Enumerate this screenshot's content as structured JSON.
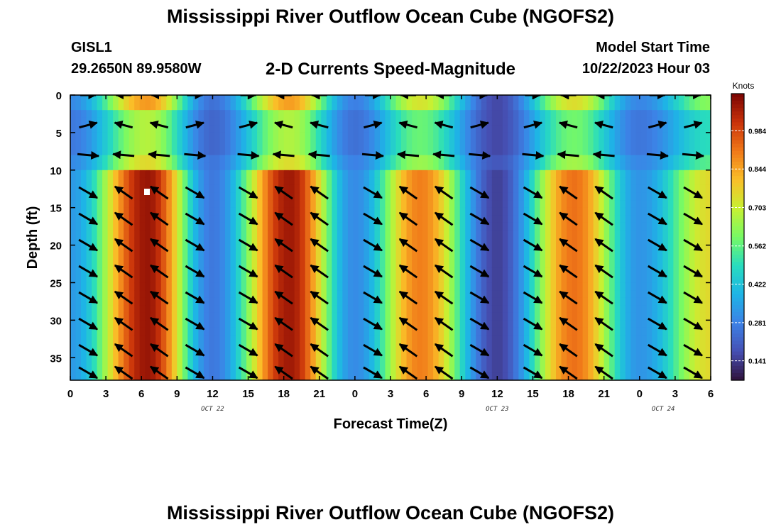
{
  "page": {
    "title": "Mississippi River Outflow Ocean Cube (NGOFS2)",
    "station": "GISL1",
    "coordinates": "29.2650N  89.9580W",
    "subtitle": "2-D Currents Speed-Magnitude",
    "model_start_label": "Model Start Time",
    "model_start_value": "10/22/2023 Hour 03",
    "bottom_title": "Mississippi River Outflow Ocean Cube (NGOFS2)"
  },
  "chart_data": {
    "type": "heatmap",
    "xlabel": "Forecast Time(Z)",
    "ylabel": "Depth (ft)",
    "x_tick_labels": [
      "0",
      "3",
      "6",
      "9",
      "12",
      "15",
      "18",
      "21",
      "0",
      "3",
      "6",
      "9",
      "12",
      "15",
      "18",
      "21",
      "0",
      "3",
      "6"
    ],
    "date_labels": [
      {
        "label": "OCT 22",
        "hour": 12
      },
      {
        "label": "OCT 23",
        "hour": 36
      },
      {
        "label": "OCT 24",
        "hour": 50
      }
    ],
    "xlim_hours": [
      0,
      54
    ],
    "y_ticks": [
      0,
      5,
      10,
      15,
      20,
      25,
      30,
      35
    ],
    "ylim": [
      38,
      0
    ],
    "colorbar": {
      "unit": "Knots",
      "ticks": [
        "0.141",
        "0.281",
        "0.422",
        "0.562",
        "0.703",
        "0.844",
        "0.984"
      ],
      "tick_values": [
        0.141,
        0.281,
        0.422,
        0.562,
        0.703,
        0.844,
        0.984
      ],
      "range": [
        0.07,
        1.12
      ]
    },
    "speed_peaks": [
      {
        "hour": 6.5,
        "speed": 1.08
      },
      {
        "hour": 18.5,
        "speed": 1.07
      },
      {
        "hour": 29.5,
        "speed": 0.9
      },
      {
        "hour": 42.5,
        "speed": 0.92
      },
      {
        "hour": 54,
        "speed": 0.75
      }
    ],
    "speed_minima": [
      {
        "hour": 0,
        "speed": 0.33
      },
      {
        "hour": 12,
        "speed": 0.26
      },
      {
        "hour": 24,
        "speed": 0.3
      },
      {
        "hour": 36,
        "speed": 0.15
      },
      {
        "hour": 48,
        "speed": 0.32
      }
    ],
    "vector_times": [
      1.5,
      4.5,
      7.5,
      10.5,
      15,
      18,
      21,
      25.5,
      28.5,
      31.5,
      34.5,
      39,
      42,
      45,
      49.5,
      52.5
    ],
    "vector_depths": [
      0,
      4,
      8,
      13,
      16.5,
      20,
      23.5,
      27,
      30.5,
      34,
      37
    ]
  }
}
